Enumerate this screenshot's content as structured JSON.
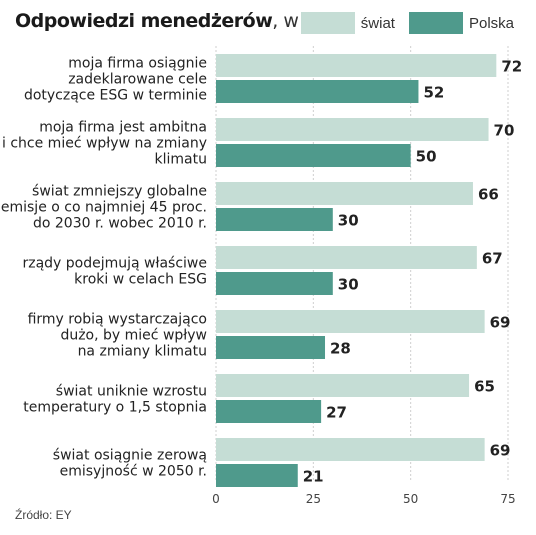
{
  "title_bold": "Odpowiedzi menedżerów",
  "title_unit": ", w proc.",
  "source": "Źródło: EY",
  "colors": {
    "swiat": "#c5ddd5",
    "polska": "#4f9a8c",
    "grid": "#cfcfcf"
  },
  "chart_data": {
    "type": "bar",
    "orientation": "horizontal",
    "categories": [
      [
        "moja firma osiągnie",
        "zadeklarowane cele",
        "dotyczące ESG w terminie"
      ],
      [
        "moja firma jest ambitna",
        "i chce mieć wpływ na zmiany",
        "klimatu"
      ],
      [
        "świat zmniejszy globalne",
        "emisje o co najmniej 45 proc.",
        "do 2030 r. wobec 2010 r."
      ],
      [
        "rządy podejmują właściwe",
        "kroki w celach ESG"
      ],
      [
        "firmy robią wystarczająco",
        "dużo, by mieć wpływ",
        "na zmiany klimatu"
      ],
      [
        "świat uniknie wzrostu",
        "temperatury o 1,5 stopnia"
      ],
      [
        "świat osiągnie zerową",
        "emisyjność w 2050 r."
      ]
    ],
    "series": [
      {
        "name": "świat",
        "values": [
          72,
          70,
          66,
          67,
          69,
          65,
          69
        ]
      },
      {
        "name": "Polska",
        "values": [
          52,
          50,
          30,
          30,
          28,
          27,
          21
        ]
      }
    ],
    "xlim": [
      0,
      75
    ],
    "xticks": [
      0,
      25,
      50,
      75
    ],
    "grid": true,
    "legend": "top-right"
  }
}
